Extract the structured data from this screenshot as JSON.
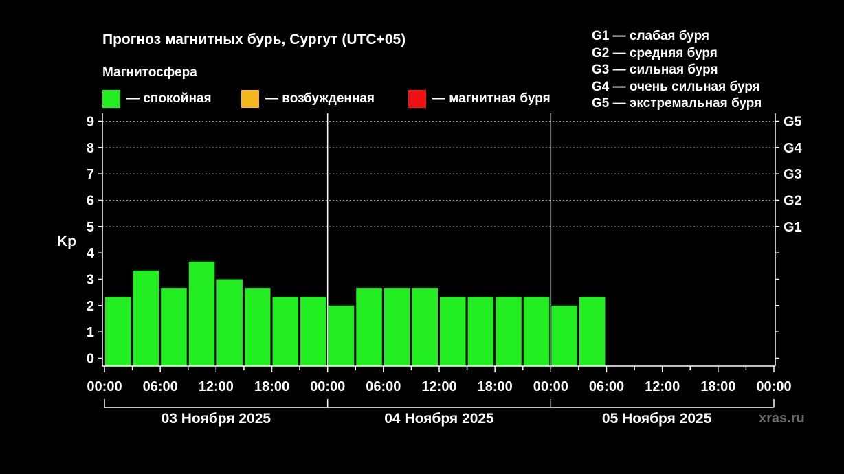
{
  "title": "Прогноз магнитных бурь, Сургут (UTC+05)",
  "subtitle": "Магнитосфера",
  "legend": [
    {
      "label": "— спокойная",
      "color": "#22ee22"
    },
    {
      "label": "— возбужденная",
      "color": "#f5b81e"
    },
    {
      "label": "— магнитная буря",
      "color": "#ee1111"
    }
  ],
  "g_legend": [
    "G1 — слабая буря",
    "G2 — средняя буря",
    "G3 — сильная буря",
    "G4 — очень сильная буря",
    "G5 — экстремальная буря"
  ],
  "watermark": "xras.ru",
  "chart_data": {
    "type": "bar",
    "ylabel": "Kp",
    "ylim": [
      -0.3,
      9.3
    ],
    "yticks": [
      0,
      1,
      2,
      3,
      4,
      5,
      6,
      7,
      8,
      9
    ],
    "right_ticks": [
      {
        "value": 5,
        "label": "G1"
      },
      {
        "value": 6,
        "label": "G2"
      },
      {
        "value": 7,
        "label": "G3"
      },
      {
        "value": 8,
        "label": "G4"
      },
      {
        "value": 9,
        "label": "G5"
      }
    ],
    "x_tick_labels": [
      "00:00",
      "06:00",
      "12:00",
      "18:00",
      "00:00",
      "06:00",
      "12:00",
      "18:00",
      "00:00",
      "06:00",
      "12:00",
      "18:00",
      "00:00"
    ],
    "days": [
      "03 Ноября 2025",
      "04 Ноября 2025",
      "05 Ноября 2025"
    ],
    "interval_hours": 3,
    "grid": "dashed horizontal at 5–9",
    "bar_color": "#22ee22",
    "values": [
      2.33,
      3.33,
      2.67,
      3.67,
      3.0,
      2.67,
      2.33,
      2.33,
      2.0,
      2.67,
      2.67,
      2.67,
      2.33,
      2.33,
      2.33,
      2.33,
      2.0,
      2.33
    ]
  }
}
